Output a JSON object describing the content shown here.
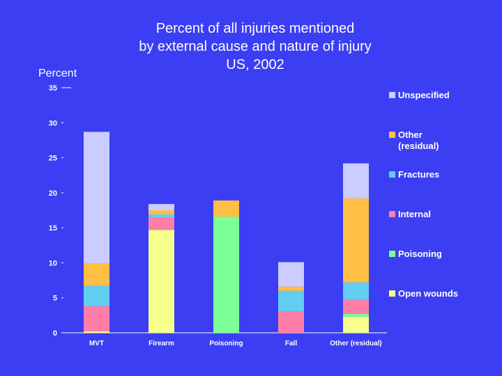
{
  "chart_data": {
    "type": "bar",
    "stacked": true,
    "title_lines": [
      "Percent of all injuries mentioned",
      "by external cause and nature of injury",
      "US, 2002"
    ],
    "ylabel": "Percent",
    "xlabel": "",
    "ylim": [
      0,
      35
    ],
    "yticks": [
      "0",
      "5",
      "10",
      "15",
      "20",
      "25",
      "30",
      "35"
    ],
    "categories": [
      "MVT",
      "Firearm",
      "Poisoning",
      "Fall",
      "Other (residual)"
    ],
    "series": [
      {
        "name": "Open wounds",
        "color": "#f6ff8c",
        "values": [
          0.2,
          14.7,
          0.0,
          0.0,
          2.3
        ]
      },
      {
        "name": "Poisoning",
        "color": "#7bff96",
        "values": [
          0.0,
          0.0,
          16.6,
          0.0,
          0.4
        ]
      },
      {
        "name": "Internal",
        "color": "#ff7ea8",
        "values": [
          3.6,
          1.8,
          0.0,
          3.1,
          2.0
        ]
      },
      {
        "name": "Fractures",
        "color": "#62cef2",
        "values": [
          2.9,
          0.4,
          0.0,
          2.9,
          2.5
        ]
      },
      {
        "name": "Other (residual)",
        "color": "#ffbe44",
        "values": [
          3.2,
          0.6,
          2.3,
          0.6,
          12.0
        ]
      },
      {
        "name": "Unspecified",
        "color": "#cbccff",
        "values": [
          18.8,
          0.9,
          0.0,
          3.5,
          5.0
        ]
      }
    ],
    "legend": {
      "placement": "right",
      "order": [
        "Unspecified",
        "Other (residual)",
        "Fractures",
        "Internal",
        "Poisoning",
        "Open wounds"
      ],
      "labels": {
        "Unspecified": [
          "Unspecified"
        ],
        "Other (residual)": [
          "Other",
          "(residual)"
        ],
        "Fractures": [
          "Fractures"
        ],
        "Internal": [
          "Internal"
        ],
        "Poisoning": [
          "Poisoning"
        ],
        "Open wounds": [
          "Open wounds"
        ]
      }
    },
    "grid": false
  }
}
